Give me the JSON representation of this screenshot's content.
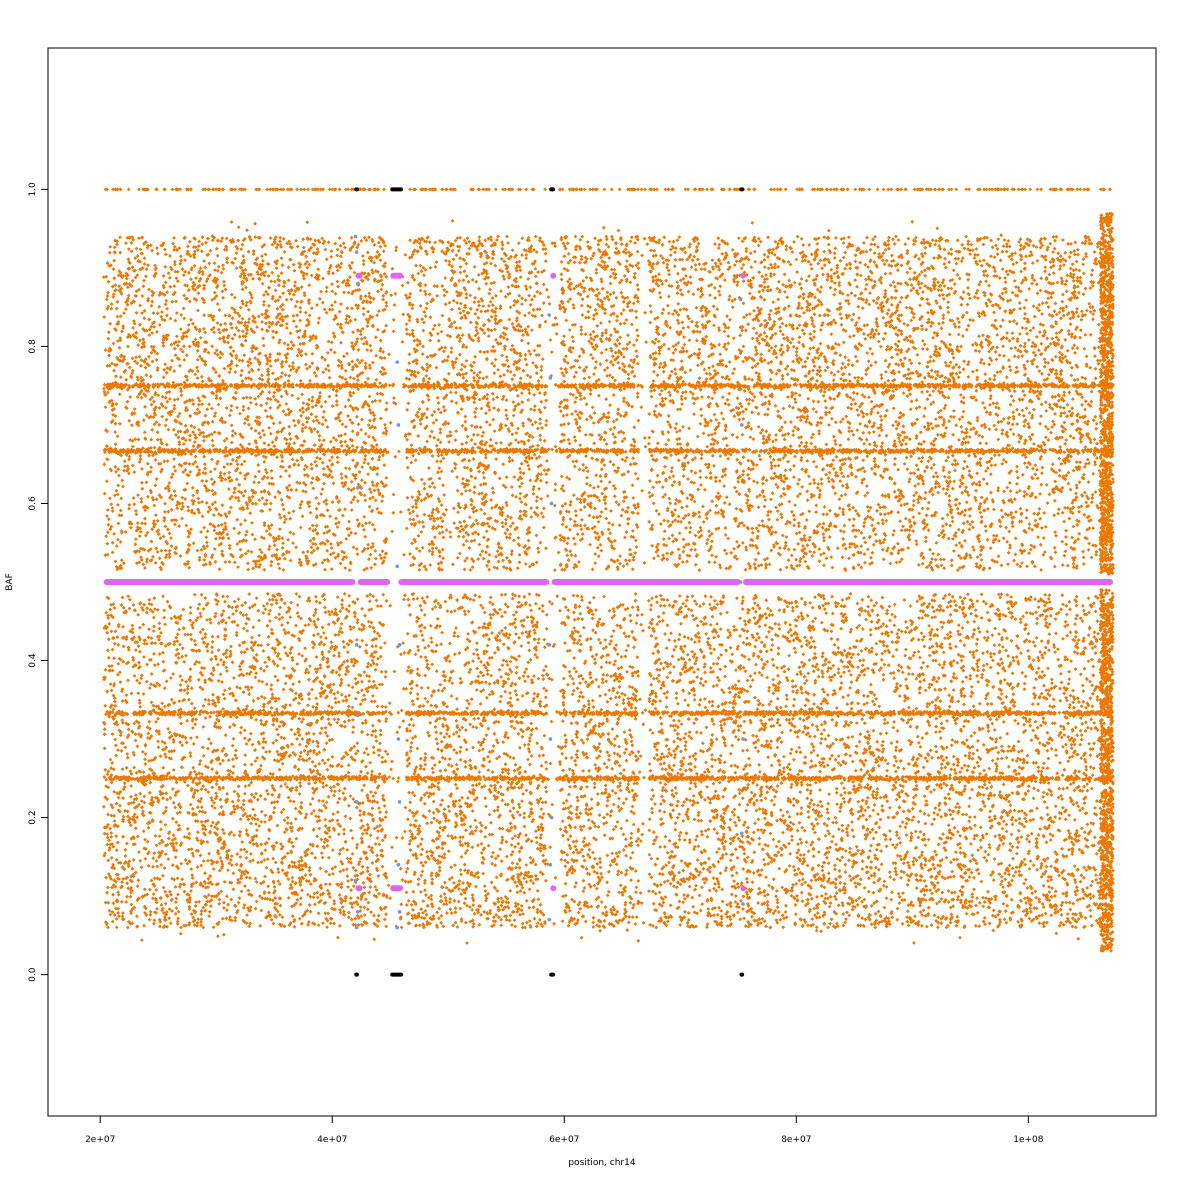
{
  "chart_data": {
    "type": "scatter",
    "title": "",
    "xlabel": "position, chr14",
    "ylabel": "BAF",
    "xlim": [
      15500000,
      111000000
    ],
    "ylim": [
      -0.18,
      1.18
    ],
    "x_ticks": [
      {
        "value": 20000000,
        "label": "2e+07"
      },
      {
        "value": 40000000,
        "label": "4e+07"
      },
      {
        "value": 60000000,
        "label": "6e+07"
      },
      {
        "value": 80000000,
        "label": "8e+07"
      },
      {
        "value": 100000000,
        "label": "1e+08"
      }
    ],
    "y_ticks": [
      {
        "value": 0.0,
        "label": "0.0"
      },
      {
        "value": 0.2,
        "label": "0.2"
      },
      {
        "value": 0.4,
        "label": "0.4"
      },
      {
        "value": 0.6,
        "label": "0.6"
      },
      {
        "value": 0.8,
        "label": "0.8"
      },
      {
        "value": 1.0,
        "label": "1.0"
      }
    ],
    "grid": false,
    "legend": "none",
    "colors": {
      "orange": "#ee7700",
      "magenta": "#dd66ee",
      "blue": "#6699ee",
      "black": "#000000"
    },
    "x_range_data": [
      20300000,
      107300000
    ],
    "series": [
      {
        "color": "orange",
        "description_density": "dense scatter of BAF values, symmetric around 0.5, bands at 0.33/0.67/0.75/0.25, homozygous calls at 0 and 1",
        "bands": [
          {
            "y": 1.0,
            "spread": 0.0
          },
          {
            "y": 0.75,
            "spread": 0.003
          },
          {
            "y": 0.667,
            "spread": 0.003
          },
          {
            "y": 0.333,
            "spread": 0.003
          },
          {
            "y": 0.25,
            "spread": 0.003
          }
        ],
        "gaps_x": [
          [
            44700000,
            46400000
          ],
          [
            58500000,
            59600000
          ],
          [
            66400000,
            67300000
          ]
        ]
      },
      {
        "color": "magenta",
        "segments": [
          {
            "x0": 20300000,
            "x1": 42000000,
            "y": 0.5
          },
          {
            "x0": 42200000,
            "x1": 45000000,
            "y": 0.5
          },
          {
            "x0": 45700000,
            "x1": 58700000,
            "y": 0.5
          },
          {
            "x0": 58900000,
            "x1": 75200000,
            "y": 0.5
          },
          {
            "x0": 75400000,
            "x1": 107300000,
            "y": 0.5
          },
          {
            "x0": 42000000,
            "x1": 42600000,
            "y": 0.89
          },
          {
            "x0": 45000000,
            "x1": 46100000,
            "y": 0.89
          },
          {
            "x0": 58800000,
            "x1": 59300000,
            "y": 0.89
          },
          {
            "x0": 75200000,
            "x1": 75600000,
            "y": 0.89
          },
          {
            "x0": 42000000,
            "x1": 42600000,
            "y": 0.11
          },
          {
            "x0": 45000000,
            "x1": 46100000,
            "y": 0.11
          },
          {
            "x0": 58800000,
            "x1": 59300000,
            "y": 0.11
          },
          {
            "x0": 75200000,
            "x1": 75600000,
            "y": 0.11
          }
        ]
      },
      {
        "color": "blue",
        "points": [
          [
            42000000,
            0.94
          ],
          [
            42100000,
            0.92
          ],
          [
            42200000,
            0.88
          ],
          [
            42200000,
            0.62
          ],
          [
            42100000,
            0.42
          ],
          [
            42200000,
            0.33
          ],
          [
            42100000,
            0.22
          ],
          [
            42000000,
            0.12
          ],
          [
            42200000,
            0.08
          ],
          [
            42100000,
            0.06
          ],
          [
            45600000,
            0.78
          ],
          [
            45700000,
            0.7
          ],
          [
            45600000,
            0.52
          ],
          [
            45800000,
            0.42
          ],
          [
            45700000,
            0.3
          ],
          [
            45800000,
            0.22
          ],
          [
            45700000,
            0.14
          ],
          [
            45800000,
            0.08
          ],
          [
            45600000,
            0.06
          ],
          [
            58700000,
            0.84
          ],
          [
            58800000,
            0.76
          ],
          [
            58900000,
            0.6
          ],
          [
            58700000,
            0.42
          ],
          [
            58800000,
            0.3
          ],
          [
            58900000,
            0.2
          ],
          [
            58800000,
            0.14
          ],
          [
            58700000,
            0.07
          ],
          [
            75200000,
            0.86
          ],
          [
            75300000,
            0.7
          ],
          [
            75200000,
            0.5
          ],
          [
            75400000,
            0.3
          ],
          [
            75300000,
            0.18
          ],
          [
            75400000,
            0.09
          ]
        ]
      },
      {
        "color": "black",
        "segments": [
          {
            "x0": 41900000,
            "x1": 42300000,
            "y": 1.0
          },
          {
            "x0": 45000000,
            "x1": 46100000,
            "y": 1.0
          },
          {
            "x0": 58700000,
            "x1": 59200000,
            "y": 1.0
          },
          {
            "x0": 75100000,
            "x1": 75500000,
            "y": 1.0
          },
          {
            "x0": 41900000,
            "x1": 42300000,
            "y": 0.0
          },
          {
            "x0": 45000000,
            "x1": 46100000,
            "y": 0.0
          },
          {
            "x0": 58700000,
            "x1": 59200000,
            "y": 0.0
          },
          {
            "x0": 75100000,
            "x1": 75500000,
            "y": 0.0
          }
        ]
      }
    ]
  }
}
